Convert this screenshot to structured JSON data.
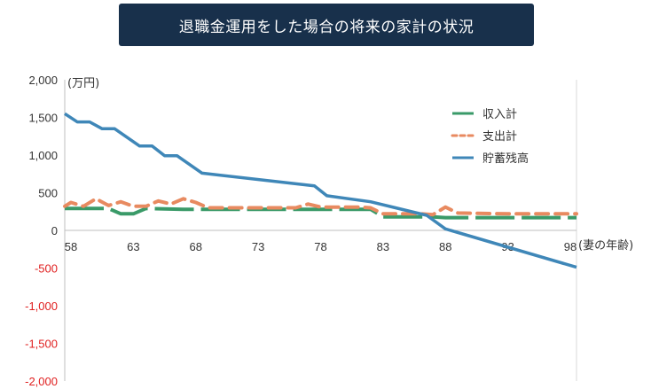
{
  "title": "退職金運用をした場合の将来の家計の状況",
  "chart_data": {
    "type": "line",
    "ylabel": "(万円)",
    "xlabel": "(妻の年齢)",
    "ylim": [
      -2000,
      2000
    ],
    "xlim": [
      57.5,
      98.5
    ],
    "yticks": [
      2000,
      1500,
      1000,
      500,
      0,
      -500,
      -1000,
      -1500,
      -2000
    ],
    "ytick_labels": [
      "2,000",
      "1,500",
      "1,000",
      "500",
      "0",
      "-500",
      "-1,000",
      "-1,500",
      "-2,000"
    ],
    "xticks": [
      58,
      63,
      68,
      73,
      78,
      83,
      88,
      93,
      98
    ],
    "xtick_labels": [
      "58",
      "63",
      "68",
      "73",
      "78",
      "83",
      "88",
      "93",
      "98"
    ],
    "legend_position": "top-right",
    "colors": {
      "income": "#3a9a68",
      "expense": "#e88a60",
      "savings": "#3f87b8",
      "negative_tick": "#e02020"
    },
    "series": [
      {
        "name": "収入計",
        "style": "dashed",
        "points": [
          [
            57.5,
            290
          ],
          [
            61,
            290
          ],
          [
            62,
            220
          ],
          [
            63,
            220
          ],
          [
            64,
            290
          ],
          [
            67,
            280
          ],
          [
            69,
            280
          ],
          [
            70,
            280
          ],
          [
            74,
            280
          ],
          [
            77,
            280
          ],
          [
            78,
            280
          ],
          [
            82,
            280
          ],
          [
            83,
            180
          ],
          [
            87,
            180
          ],
          [
            88,
            170
          ],
          [
            93,
            170
          ],
          [
            98.5,
            170
          ]
        ]
      },
      {
        "name": "支出計",
        "style": "dotted",
        "points": [
          [
            57.5,
            320
          ],
          [
            58,
            370
          ],
          [
            59,
            320
          ],
          [
            60,
            420
          ],
          [
            61,
            330
          ],
          [
            62,
            380
          ],
          [
            63,
            320
          ],
          [
            64,
            320
          ],
          [
            65,
            390
          ],
          [
            66,
            350
          ],
          [
            67,
            420
          ],
          [
            68,
            370
          ],
          [
            69,
            300
          ],
          [
            73,
            300
          ],
          [
            76,
            300
          ],
          [
            77,
            350
          ],
          [
            78,
            310
          ],
          [
            81,
            310
          ],
          [
            82,
            300
          ],
          [
            83,
            220
          ],
          [
            86,
            220
          ],
          [
            87,
            210
          ],
          [
            88,
            310
          ],
          [
            89,
            230
          ],
          [
            93,
            220
          ],
          [
            98.5,
            220
          ]
        ]
      },
      {
        "name": "貯蓄残高",
        "style": "solid",
        "points": [
          [
            57.5,
            1550
          ],
          [
            58.5,
            1440
          ],
          [
            59.5,
            1440
          ],
          [
            60.5,
            1350
          ],
          [
            61.5,
            1350
          ],
          [
            63.5,
            1120
          ],
          [
            64.5,
            1120
          ],
          [
            65.5,
            990
          ],
          [
            66.5,
            990
          ],
          [
            68.5,
            760
          ],
          [
            77.5,
            590
          ],
          [
            78.5,
            460
          ],
          [
            82,
            380
          ],
          [
            84,
            300
          ],
          [
            86.5,
            200
          ],
          [
            88,
            20
          ],
          [
            98.5,
            -490
          ]
        ]
      }
    ]
  }
}
